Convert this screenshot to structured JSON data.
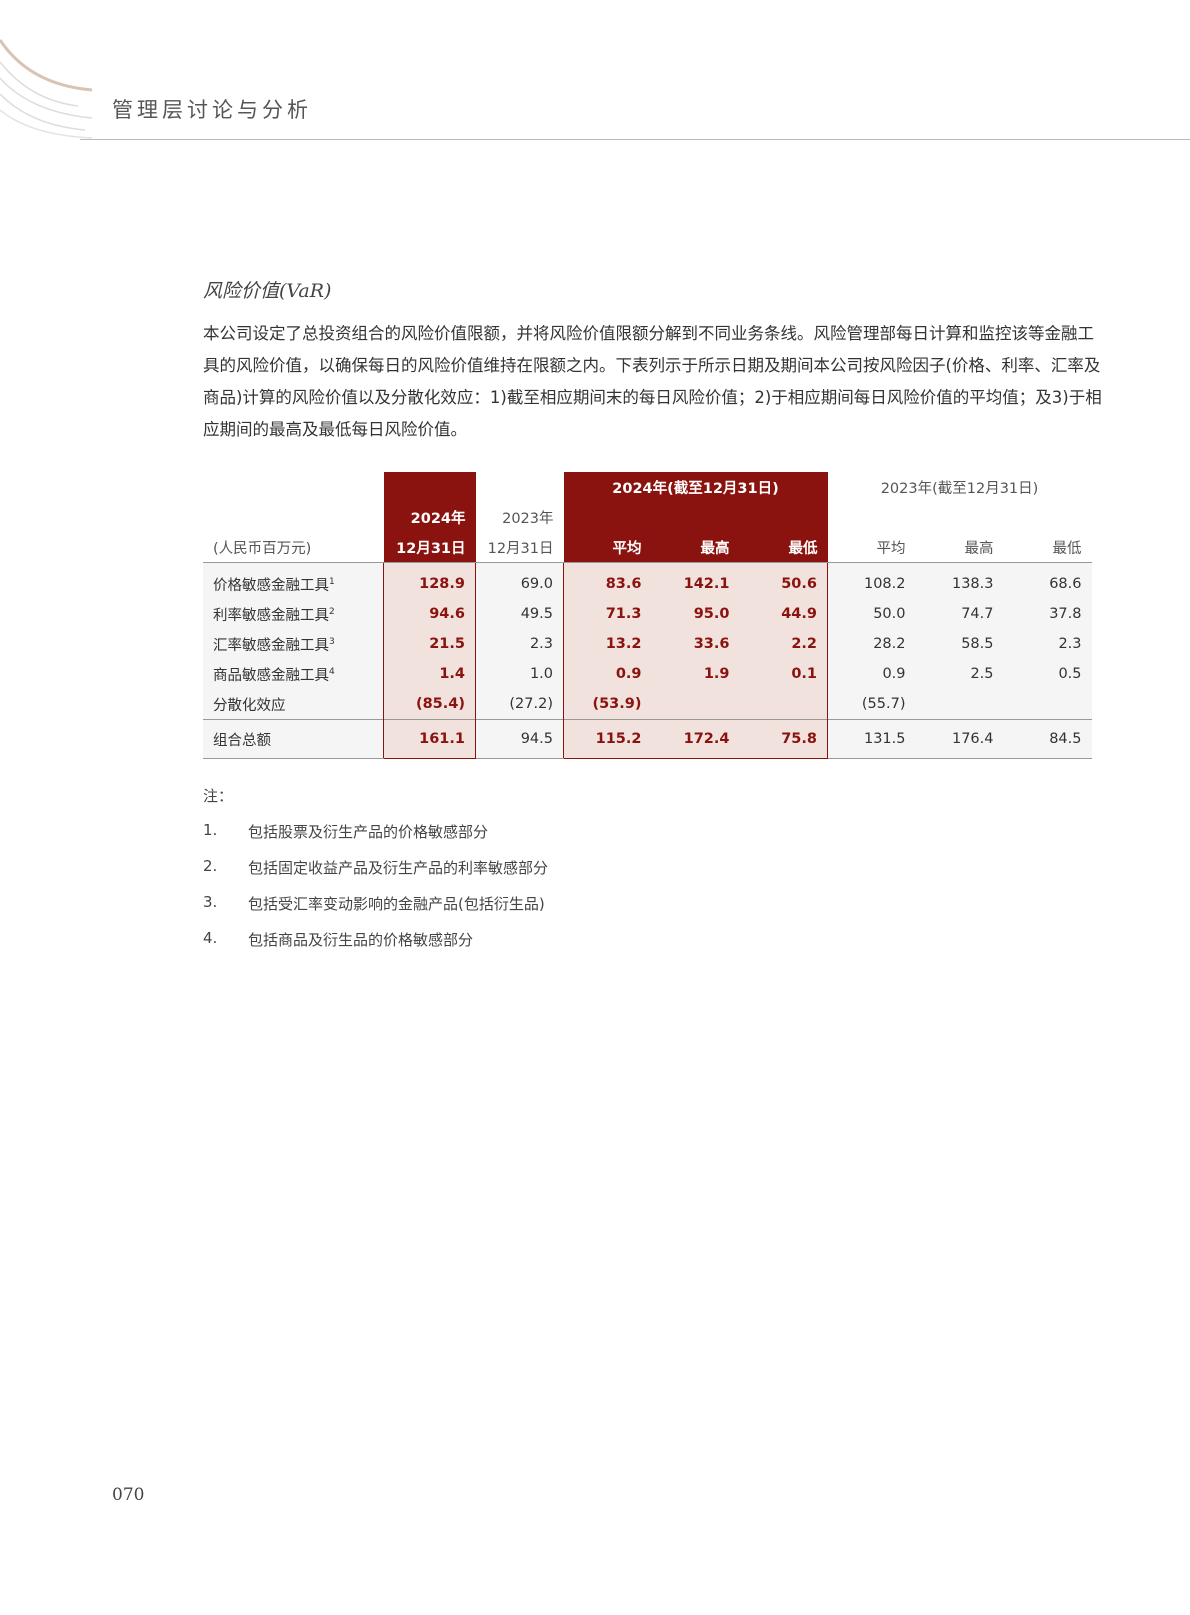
{
  "header": {
    "section": "管理层讨论与分析"
  },
  "title": "风险价值(VaR)",
  "paragraph": "本公司设定了总投资组合的风险价值限额，并将风险价值限额分解到不同业务条线。风险管理部每日计算和监控该等金融工具的风险价值，以确保每日的风险价值维持在限额之内。下表列示于所示日期及期间本公司按风险因子(价格、利率、汇率及商品)计算的风险价值以及分散化效应：1)截至相应期间末的每日风险价值；2)于相应期间每日风险价值的平均值；及3)于相应期间的最高及最低每日风险价值。",
  "table": {
    "unit": "(人民币百万元)",
    "col1": [
      "2024年",
      "12月31日"
    ],
    "col2": [
      "2023年",
      "12月31日"
    ],
    "group2024": "2024年(截至12月31日)",
    "group2023": "2023年(截至12月31日)",
    "sub": [
      "平均",
      "最高",
      "最低"
    ],
    "rows": [
      {
        "label": "价格敏感金融工具",
        "sup": "1",
        "v": [
          "128.9",
          "69.0",
          "83.6",
          "142.1",
          "50.6",
          "108.2",
          "138.3",
          "68.6"
        ]
      },
      {
        "label": "利率敏感金融工具",
        "sup": "2",
        "v": [
          "94.6",
          "49.5",
          "71.3",
          "95.0",
          "44.9",
          "50.0",
          "74.7",
          "37.8"
        ]
      },
      {
        "label": "汇率敏感金融工具",
        "sup": "3",
        "v": [
          "21.5",
          "2.3",
          "13.2",
          "33.6",
          "2.2",
          "28.2",
          "58.5",
          "2.3"
        ]
      },
      {
        "label": "商品敏感金融工具",
        "sup": "4",
        "v": [
          "1.4",
          "1.0",
          "0.9",
          "1.9",
          "0.1",
          "0.9",
          "2.5",
          "0.5"
        ]
      },
      {
        "label": "分散化效应",
        "sup": "",
        "v": [
          "(85.4)",
          "(27.2)",
          "(53.9)",
          "",
          "",
          "(55.7)",
          "",
          ""
        ]
      }
    ],
    "total": {
      "label": "组合总额",
      "v": [
        "161.1",
        "94.5",
        "115.2",
        "172.4",
        "75.8",
        "131.5",
        "176.4",
        "84.5"
      ]
    }
  },
  "notes": {
    "title": "注：",
    "items": [
      {
        "n": "1.",
        "text": "包括股票及衍生产品的价格敏感部分"
      },
      {
        "n": "2.",
        "text": "包括固定收益产品及衍生产品的利率敏感部分"
      },
      {
        "n": "3.",
        "text": "包括受汇率变动影响的金融产品(包括衍生品)"
      },
      {
        "n": "4.",
        "text": "包括商品及衍生品的价格敏感部分"
      }
    ]
  },
  "page_number": "070",
  "colors": {
    "accent": "#8b130f",
    "highlight": "#f2e2de"
  }
}
